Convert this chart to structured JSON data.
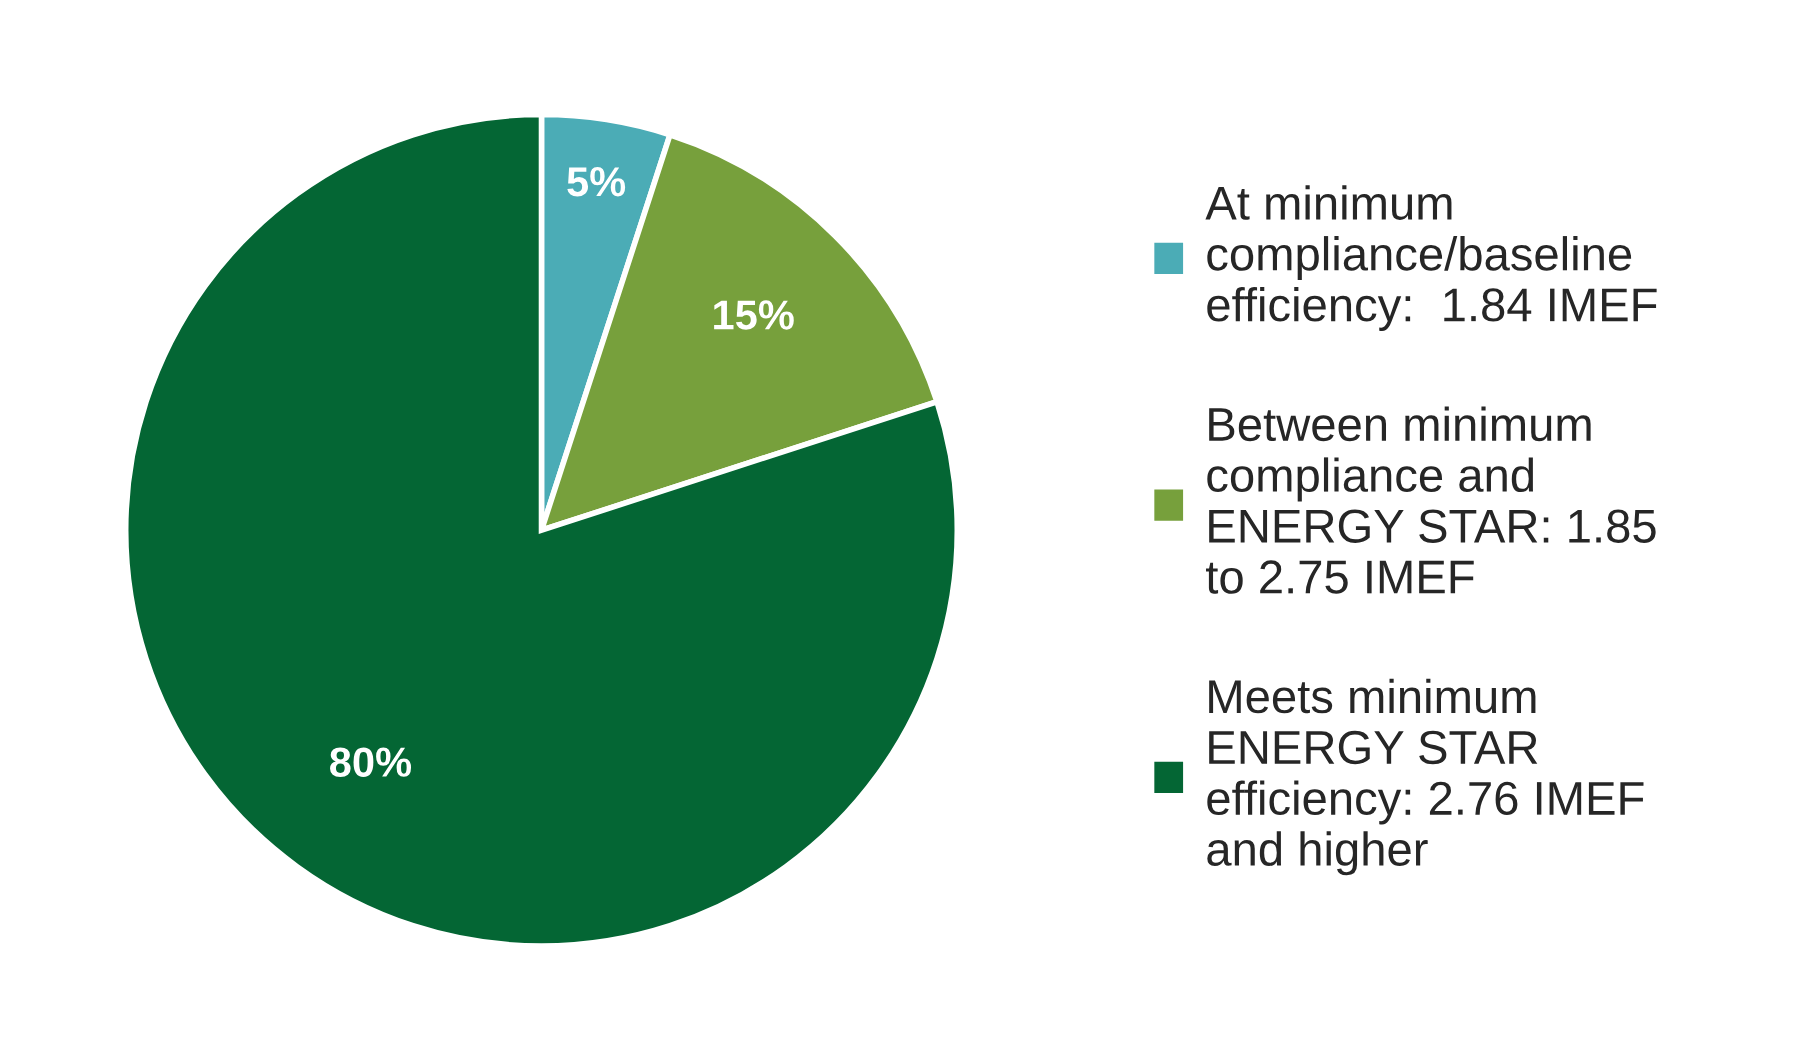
{
  "chart_data": {
    "type": "pie",
    "categories": [
      "At minimum\ncompliance/baseline\nefficiency:  1.84 IMEF",
      "Between minimum\ncompliance and\nENERGY STAR: 1.85\nto 2.75 IMEF",
      "Meets minimum\nENERGY STAR\nefficiency: 2.76 IMEF\nand higher"
    ],
    "values": [
      5,
      15,
      80
    ],
    "colors": [
      "#4bacb6",
      "#77a03c",
      "#046634"
    ],
    "value_labels": [
      "5%",
      "15%",
      "80%"
    ],
    "legend": "right"
  }
}
